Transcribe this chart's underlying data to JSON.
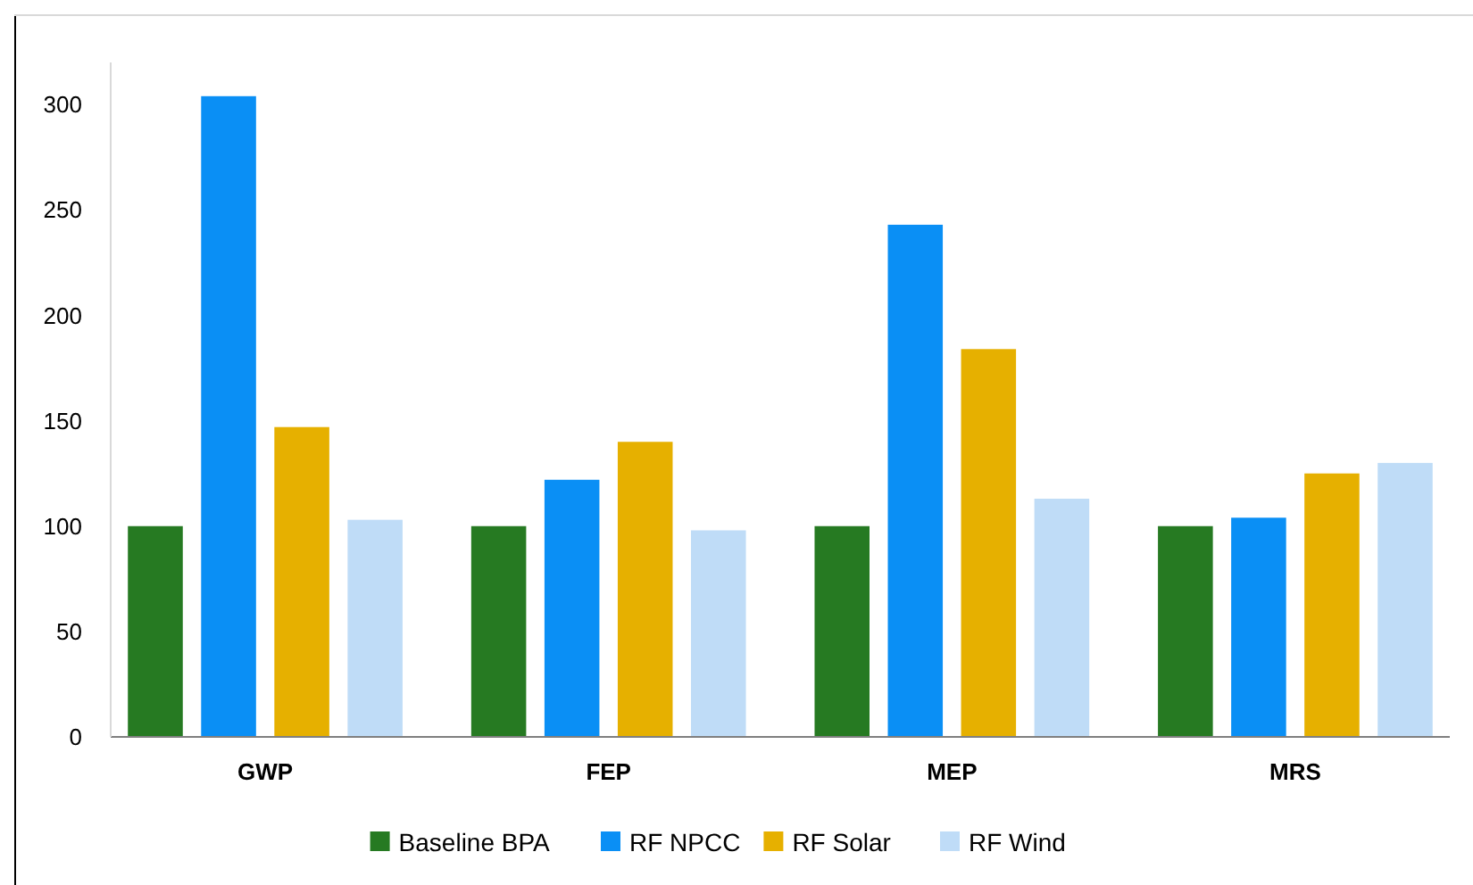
{
  "chart_data": {
    "type": "bar",
    "categories": [
      "GWP",
      "FEP",
      "MEP",
      "MRS"
    ],
    "series": [
      {
        "name": "Baseline BPA",
        "color": "#267a22",
        "values": [
          100,
          100,
          100,
          100
        ]
      },
      {
        "name": "RF NPCC",
        "color": "#0a8ff5",
        "values": [
          304,
          122,
          243,
          104
        ]
      },
      {
        "name": "RF Solar",
        "color": "#e6b000",
        "values": [
          147,
          140,
          184,
          125
        ]
      },
      {
        "name": "RF Wind",
        "color": "#bfdcf7",
        "values": [
          103,
          98,
          113,
          130
        ]
      }
    ],
    "ylim": [
      0,
      320
    ],
    "yticks": [
      0,
      50,
      100,
      150,
      200,
      250,
      300
    ],
    "grid": false,
    "legend": "bottom"
  }
}
